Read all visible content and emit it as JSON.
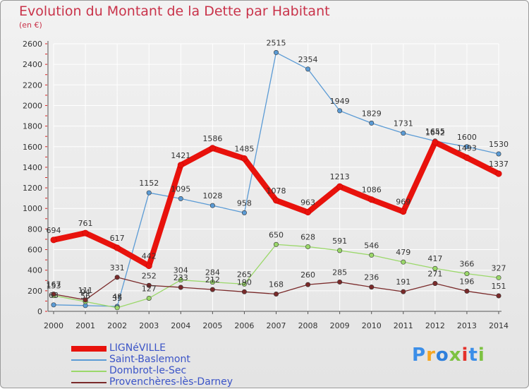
{
  "header": {
    "title": "Evolution du Montant de la Dette par Habitant",
    "subtitle": "(en €)"
  },
  "logo": {
    "text": "Proxiti",
    "colors": [
      "#3b8ee8",
      "#f5a623",
      "#2f7fdc",
      "#7dc242",
      "#e4312b",
      "#3b8ee8",
      "#7dc242"
    ]
  },
  "chart_data": {
    "type": "line",
    "title": "Evolution du Montant de la Dette par Habitant",
    "ylabel": "(en €)",
    "xlabel": "",
    "ylim": [
      0,
      2600
    ],
    "yticks": [
      0,
      200,
      400,
      600,
      800,
      1000,
      1200,
      1400,
      1600,
      1800,
      2000,
      2200,
      2400,
      2600
    ],
    "x": [
      "2000",
      "2001",
      "2002",
      "2003",
      "2004",
      "2005",
      "2006",
      "2007",
      "2008",
      "2009",
      "2010",
      "2011",
      "2012",
      "2013",
      "2014"
    ],
    "grid": true,
    "legend": "bottom-left",
    "series": [
      {
        "name": "LIGNéVILLE",
        "color": "#e8120c",
        "width": 8,
        "values": [
          694,
          761,
          617,
          442,
          1421,
          1586,
          1485,
          1078,
          963,
          1213,
          1086,
          969,
          1642,
          1493,
          1337
        ]
      },
      {
        "name": "Saint-Baslemont",
        "color": "#5b9bd5",
        "width": 1.3,
        "values": [
          63,
          56,
          48,
          1152,
          1095,
          1028,
          958,
          2515,
          2354,
          1949,
          1829,
          1731,
          1655,
          1600,
          1530
        ]
      },
      {
        "name": "Dombrot-le-Sec",
        "color": "#9bd86a",
        "width": 1.3,
        "values": [
          153,
          94,
          35,
          127,
          304,
          284,
          265,
          650,
          628,
          591,
          546,
          479,
          417,
          366,
          327
        ]
      },
      {
        "name": "Provenchères-lès-Darney",
        "color": "#7a2a2a",
        "width": 1.3,
        "values": [
          167,
          111,
          331,
          252,
          233,
          212,
          190,
          168,
          260,
          285,
          236,
          191,
          271,
          196,
          151
        ]
      }
    ]
  }
}
